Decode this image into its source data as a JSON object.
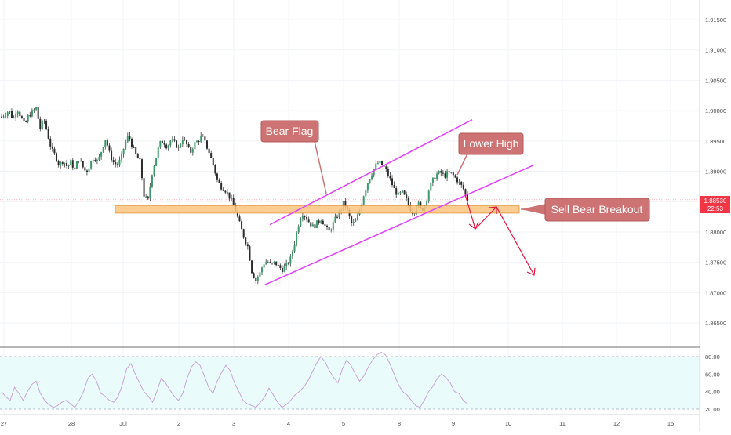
{
  "chart_data": {
    "type": "candlestick",
    "y_axis": {
      "ticks": [
        "1.91500",
        "1.91000",
        "1.90500",
        "1.90000",
        "1.89500",
        "1.89000",
        "1.88500",
        "1.88000",
        "1.87500",
        "1.87000",
        "1.86500"
      ],
      "range": [
        1.8615,
        1.9178
      ]
    },
    "x_axis": {
      "ticks": [
        "27",
        "28",
        "Jul",
        "2",
        "3",
        "4",
        "5",
        "8",
        "9",
        "10",
        "11",
        "12",
        "15"
      ]
    },
    "price_label": {
      "value": "1.88530",
      "countdown": "22:53"
    },
    "ohlc_path": [
      1.899,
      1.8995,
      1.9,
      1.8985,
      1.9005,
      1.899,
      1.8975,
      1.8992,
      1.8998,
      1.9004,
      1.897,
      1.8986,
      1.896,
      1.8935,
      1.8925,
      1.891,
      1.8918,
      1.8908,
      1.8915,
      1.8903,
      1.8922,
      1.8908,
      1.8898,
      1.8912,
      1.8925,
      1.8915,
      1.8935,
      1.8955,
      1.893,
      1.8915,
      1.891,
      1.892,
      1.8945,
      1.896,
      1.894,
      1.8925,
      1.8915,
      1.886,
      1.885,
      1.8895,
      1.892,
      1.8945,
      1.895,
      1.894,
      1.8952,
      1.8946,
      1.8938,
      1.8955,
      1.8945,
      1.893,
      1.8945,
      1.895,
      1.8958,
      1.8945,
      1.893,
      1.891,
      1.8885,
      1.8875,
      1.887,
      1.886,
      1.8848,
      1.883,
      1.881,
      1.879,
      1.8775,
      1.8735,
      1.872,
      1.873,
      1.8748,
      1.8752,
      1.8745,
      1.875,
      1.8742,
      1.8738,
      1.8745,
      1.8755,
      1.878,
      1.881,
      1.8832,
      1.8825,
      1.8815,
      1.8808,
      1.8815,
      1.8822,
      1.881,
      1.88,
      1.8812,
      1.8825,
      1.8835,
      1.885,
      1.883,
      1.8812,
      1.8818,
      1.8835,
      1.886,
      1.888,
      1.8895,
      1.8908,
      1.8915,
      1.891,
      1.89,
      1.8885,
      1.887,
      1.886,
      1.8865,
      1.8855,
      1.884,
      1.883,
      1.885,
      1.8835,
      1.8845,
      1.887,
      1.8885,
      1.8895,
      1.8898,
      1.8892,
      1.8898,
      1.8895,
      1.8888,
      1.888,
      1.887,
      1.8853
    ],
    "rsi": {
      "ticks": [
        "80.00",
        "60.00",
        "40.00",
        "20.00"
      ],
      "band": [
        20,
        80
      ],
      "values": [
        40,
        34,
        30,
        45,
        38,
        30,
        40,
        48,
        52,
        38,
        30,
        25,
        22,
        24,
        28,
        30,
        26,
        22,
        30,
        40,
        55,
        60,
        52,
        38,
        35,
        30,
        28,
        34,
        48,
        66,
        72,
        60,
        50,
        40,
        35,
        28,
        40,
        55,
        50,
        42,
        35,
        30,
        38,
        55,
        68,
        74,
        70,
        58,
        45,
        38,
        52,
        62,
        70,
        64,
        50,
        40,
        30,
        26,
        24,
        22,
        28,
        34,
        44,
        36,
        28,
        22,
        25,
        30,
        36,
        40,
        45,
        52,
        62,
        72,
        80,
        74,
        64,
        56,
        50,
        66,
        76,
        70,
        60,
        52,
        58,
        68,
        76,
        82,
        85,
        82,
        72,
        60,
        48,
        40,
        36,
        30,
        24,
        22,
        30,
        40,
        46,
        55,
        60,
        56,
        50,
        40,
        38,
        30,
        26
      ]
    },
    "annotations": {
      "bear_flag": "Bear Flag",
      "lower_high": "Lower High",
      "sell_breakout": "Sell Bear Breakout"
    },
    "support_zone": [
      1.8831,
      1.8843
    ],
    "channel_lines": {
      "upper": {
        "from": [
          1.8812
        ],
        "to": [
          1.8985
        ]
      },
      "lower": {
        "from": [
          1.8713
        ],
        "to": [
          1.891
        ]
      }
    },
    "colors": {
      "up": "#26a69a",
      "down": "#ef5350",
      "candle_body": "#2b2b2b",
      "channel": "#e040fb",
      "zone": "#fbc47f",
      "callout": "#cd7373",
      "arrow": "#e0143c",
      "rsi_line": "#c79bd6",
      "rsi_band": "#e9fbfb",
      "price_tag": "#f23645"
    }
  }
}
